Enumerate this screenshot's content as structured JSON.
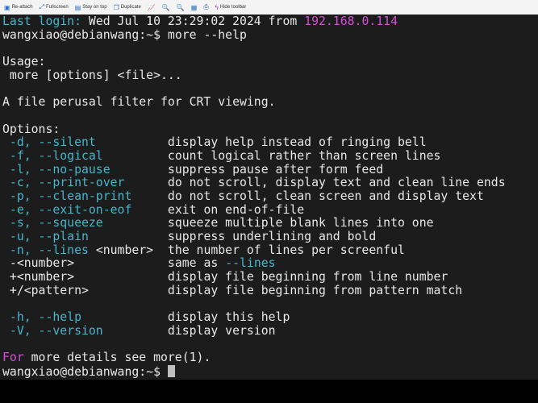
{
  "toolbar": {
    "items": [
      {
        "label": "Re-attach",
        "icon": "reattach-icon"
      },
      {
        "label": "Fullscreen",
        "icon": "fullscreen-icon"
      },
      {
        "label": "Stay on top",
        "icon": "stay-on-top-icon"
      },
      {
        "label": "Duplicate",
        "icon": "duplicate-icon"
      },
      {
        "label": "",
        "icon": "chart-icon"
      },
      {
        "label": "",
        "icon": "zoom-in-icon"
      },
      {
        "label": "",
        "icon": "zoom-out-icon"
      },
      {
        "label": "",
        "icon": "calendar-icon"
      },
      {
        "label": "",
        "icon": "print-icon"
      },
      {
        "label": "Hide toolbar",
        "icon": "lightning-icon"
      }
    ]
  },
  "colors": {
    "accent_cyan": "#45b6cc",
    "accent_magenta": "#d44fd4",
    "background": "#1c1c1c"
  },
  "terminal": {
    "last_login_label": "Last login:",
    "last_login_date": " Wed Jul 10 23:29:02 2024 ",
    "from_word": "from",
    "ip": " 192.168.0.114",
    "prompt": "wangxiao@debianwang:~$ ",
    "command": "more --help",
    "usage_label": "Usage:",
    "usage_line": " more [options] <file>...",
    "description": "A file perusal filter for CRT viewing.",
    "options_label": "Options:",
    "options": [
      {
        "flag": " -d, --silent          ",
        "desc": "display help instead of ringing bell"
      },
      {
        "flag": " -f, --logical         ",
        "desc": "count logical rather than screen lines"
      },
      {
        "flag": " -l, --no-pause        ",
        "desc": "suppress pause after form feed"
      },
      {
        "flag": " -c, --print-over      ",
        "desc": "do not scroll, display text and clean line ends"
      },
      {
        "flag": " -p, --clean-print     ",
        "desc": "do not scroll, clean screen and display text"
      },
      {
        "flag": " -e, --exit-on-eof     ",
        "desc": "exit on end-of-file"
      },
      {
        "flag": " -s, --squeeze         ",
        "desc": "squeeze multiple blank lines into one"
      },
      {
        "flag": " -u, --plain           ",
        "desc": "suppress underlining and bold"
      },
      {
        "flag": " -n, --lines",
        "flag_extra": " <number>  ",
        "desc": "the number of lines per screenful"
      }
    ],
    "plain_options": [
      {
        "flag": " -<number>             ",
        "desc": "same as ",
        "desc_link": "--lines"
      },
      {
        "flag": " +<number>             ",
        "desc": "display file beginning from line number"
      },
      {
        "flag": " +/<pattern>           ",
        "desc": "display file beginning from pattern match"
      }
    ],
    "help_options": [
      {
        "flag": " -h, --help            ",
        "desc": "display this help"
      },
      {
        "flag": " -V, --version         ",
        "desc": "display version"
      }
    ],
    "footer_for": "For",
    "footer_rest": " more details see more(1).",
    "final_prompt": "wangxiao@debianwang:~$ "
  }
}
